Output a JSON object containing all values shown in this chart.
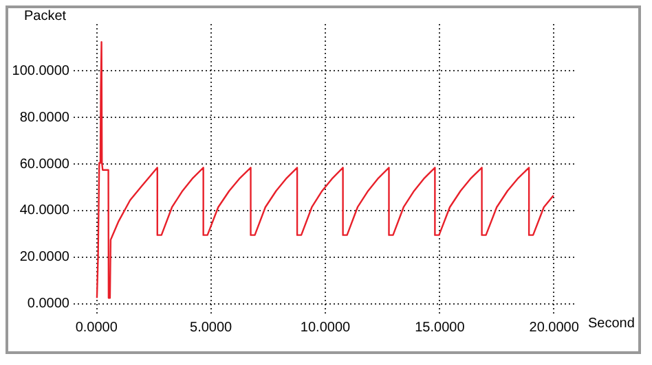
{
  "chart_data": {
    "type": "line",
    "xlabel": "Second",
    "ylabel": "Packet",
    "x": [
      0.05,
      0.1,
      0.15,
      0.2,
      0.22,
      0.25,
      0.27,
      0.3,
      0.55,
      0.56,
      0.62,
      0.65,
      1.0,
      1.5,
      2.0,
      2.69,
      2.69,
      2.87,
      3.33,
      3.79,
      4.24,
      4.7,
      4.7,
      4.88,
      5.35,
      5.83,
      6.3,
      6.77,
      6.77,
      6.95,
      7.41,
      7.88,
      8.34,
      8.8,
      8.8,
      8.98,
      9.44,
      9.89,
      10.35,
      10.8,
      10.8,
      10.98,
      11.44,
      11.9,
      12.35,
      12.81,
      12.81,
      12.99,
      13.45,
      13.91,
      14.36,
      14.82,
      14.82,
      15.0,
      15.47,
      15.94,
      16.4,
      16.87,
      16.87,
      17.05,
      17.52,
      17.99,
      18.46,
      18.93,
      18.93,
      19.11,
      19.58,
      20.0
    ],
    "series": [
      {
        "color": "#e8202a",
        "values": [
          2,
          20,
          60,
          60,
          92,
          112,
          60,
          57,
          57,
          2,
          2,
          27,
          35,
          44,
          50,
          58,
          29,
          29,
          41,
          48,
          53.5,
          58,
          29,
          29,
          41,
          48,
          53.5,
          58,
          29,
          29,
          41,
          48,
          53.5,
          58,
          29,
          29,
          41,
          48,
          53.5,
          58,
          29,
          29,
          41,
          48,
          53.5,
          58,
          29,
          29,
          41,
          48,
          53.5,
          58,
          29,
          29,
          41,
          48,
          53.5,
          58,
          29,
          29,
          41,
          48,
          53.5,
          58,
          29,
          29,
          41,
          46
        ]
      }
    ],
    "xlim": [
      -1,
      21
    ],
    "ylim": [
      -5,
      120
    ],
    "xticks": [
      {
        "value": 0,
        "label": "0.0000"
      },
      {
        "value": 5,
        "label": "5.0000"
      },
      {
        "value": 10,
        "label": "10.0000"
      },
      {
        "value": 15,
        "label": "15.0000"
      },
      {
        "value": 20,
        "label": "20.0000"
      }
    ],
    "yticks": [
      {
        "value": 0,
        "label": "0.0000"
      },
      {
        "value": 20,
        "label": "20.0000"
      },
      {
        "value": 40,
        "label": "40.0000"
      },
      {
        "value": 60,
        "label": "60.0000"
      },
      {
        "value": 80,
        "label": "80.0000"
      },
      {
        "value": 100,
        "label": "100.0000"
      }
    ],
    "grid": true,
    "line_style": "solid",
    "marker": "none"
  }
}
